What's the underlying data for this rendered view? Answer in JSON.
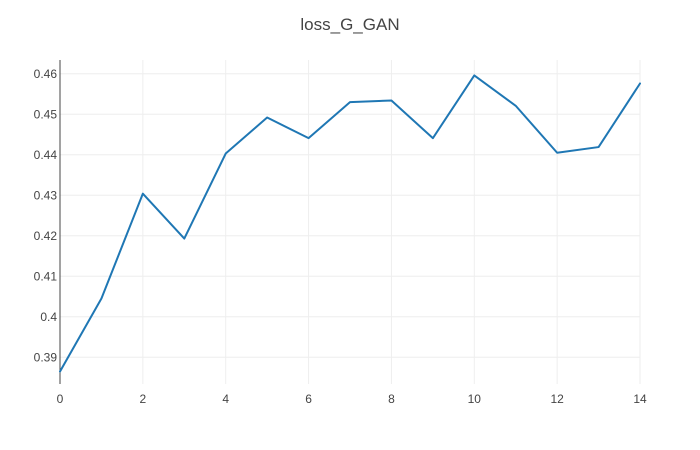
{
  "chart_data": {
    "type": "line",
    "title": "loss_G_GAN",
    "xlabel": "",
    "ylabel": "",
    "x": [
      0,
      1,
      2,
      3,
      4,
      5,
      6,
      7,
      8,
      9,
      10,
      11,
      12,
      13,
      14
    ],
    "series": [
      {
        "values": [
          0.3865,
          0.4045,
          0.4304,
          0.4193,
          0.4403,
          0.4492,
          0.4441,
          0.453,
          0.4534,
          0.4441,
          0.4596,
          0.4521,
          0.4405,
          0.4419,
          0.4576
        ],
        "color": "#1f77b4"
      }
    ],
    "xlim": [
      0,
      14
    ],
    "ylim": [
      0.3834,
      0.4634
    ],
    "x_ticks": [
      0,
      2,
      4,
      6,
      8,
      10,
      12,
      14
    ],
    "x_tick_labels": [
      "0",
      "2",
      "4",
      "6",
      "8",
      "10",
      "12",
      "14"
    ],
    "y_ticks": [
      0.39,
      0.4,
      0.41,
      0.42,
      0.43,
      0.44,
      0.45,
      0.46
    ],
    "y_tick_labels": [
      "0.39",
      "0.4",
      "0.41",
      "0.42",
      "0.43",
      "0.44",
      "0.45",
      "0.46"
    ],
    "grid": true,
    "legend": "none"
  }
}
